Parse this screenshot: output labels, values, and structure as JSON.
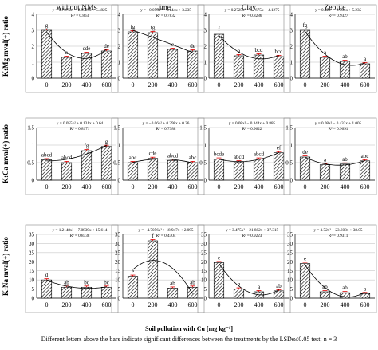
{
  "chart_data": {
    "type": "bar",
    "layout": "3x4 grid of bar panels with polynomial trend lines",
    "column_titles": [
      "without NMs",
      "Lime",
      "Clay",
      "Zeolite"
    ],
    "categories": [
      "0",
      "200",
      "400",
      "600"
    ],
    "xlabel": "Soil pollution with Cu [mg kg⁻¹]",
    "note": "Different letters above the bars indicate significant differences between the treatments by the LSDα≤0.05 test; n = 3",
    "rows": [
      {
        "ylabel": "K:Mg mval(+) ratio",
        "ylim": [
          0,
          4
        ],
        "yticks": [
          "0",
          "1",
          "2",
          "3",
          "4"
        ],
        "panels": [
          {
            "values": [
              3.0,
              1.3,
              1.55,
              1.7
            ],
            "letters": [
              "g",
              "a",
              "cde",
              "de"
            ],
            "equation": "y = 0.7075x² − 2.9525x + 5.4825",
            "r2": "R² = 0.863"
          },
          {
            "values": [
              2.9,
              2.85,
              1.8,
              1.7
            ],
            "letters": [
              "fg",
              "fg",
              "e",
              "de"
            ],
            "equation": "y = −0.075x² − 0.144x + 3.235",
            "r2": "R² = 0.7832"
          },
          {
            "values": [
              2.75,
              1.4,
              1.45,
              1.35
            ],
            "letters": [
              "f",
              "a",
              "bcd",
              "bcd"
            ],
            "equation": "y = 0.2725x² − 1.7675x + 4.1275",
            "r2": "R² = 0.8286"
          },
          {
            "values": [
              3.0,
              1.3,
              1.05,
              0.9
            ],
            "letters": [
              "fg",
              "a",
              "ab",
              "a"
            ],
            "equation": "y = 0.42x² − 2.734x + 5.235",
            "r2": "R² = 0.9327"
          }
        ]
      },
      {
        "ylabel": "K:Ca mval(+) ratio",
        "ylim": [
          0,
          1.5
        ],
        "yticks": [
          "0",
          "0.5",
          "1",
          "1.5"
        ],
        "panels": [
          {
            "values": [
              0.58,
              0.5,
              0.84,
              0.96
            ],
            "letters": [
              "abcd",
              "abcd",
              "fg",
              "g"
            ],
            "equation": "y = 0.055x² + 0.131x + 0.64",
            "r2": "R² = 0.8171"
          },
          {
            "values": [
              0.5,
              0.62,
              0.56,
              0.5
            ],
            "letters": [
              "abc",
              "cde",
              "abcd",
              "abc"
            ],
            "equation": "y = −0.06x² + 0.298x + 0.26",
            "r2": "R² = 0.7388"
          },
          {
            "values": [
              0.6,
              0.52,
              0.6,
              0.78
            ],
            "letters": [
              "bcde",
              "abcd",
              "abcd",
              "ef"
            ],
            "equation": "y = 0.08x² − 0.344x + 0.885",
            "r2": "R² = 0.9622"
          },
          {
            "values": [
              0.66,
              0.44,
              0.46,
              0.55
            ],
            "letters": [
              "de",
              "a",
              "ab",
              "abc"
            ],
            "equation": "y = 0.08x² − 0.432x + 1.005",
            "r2": "R² = 0.9691"
          }
        ]
      },
      {
        "ylabel": "K:Na mval(+) ratio",
        "ylim": [
          0,
          35
        ],
        "yticks": [
          "0",
          "5",
          "10",
          "15",
          "20",
          "25",
          "30",
          "35"
        ],
        "panels": [
          {
            "values": [
              10.0,
              6.0,
              6.0,
              6.0
            ],
            "letters": [
              "d",
              "ab",
              "bc",
              "bc"
            ],
            "equation": "y = 1.2148x² − 7.0839x + 15.614",
            "r2": "R² = 0.8338"
          },
          {
            "values": [
              12.0,
              31.5,
              5.5,
              6.0
            ],
            "letters": [
              "e",
              "f",
              "ab",
              "ab"
            ],
            "equation": "y = −4.7056x² + 18.947x + 2.095",
            "r2": "R² = 0.4304"
          },
          {
            "values": [
              19.5,
              5.0,
              3.5,
              4.0
            ],
            "letters": [
              "e",
              "b",
              "a",
              "ab"
            ],
            "equation": "y = 3.475x² − 21.882x + 37.315",
            "r2": "R² = 0.9223"
          },
          {
            "values": [
              19.0,
              3.5,
              3.0,
              2.5
            ],
            "letters": [
              "e",
              "ab",
              "ab",
              "a"
            ],
            "equation": "y = 3.72x² − 23.608x + 38.05",
            "r2": "R² = 0.9311"
          }
        ]
      }
    ]
  }
}
